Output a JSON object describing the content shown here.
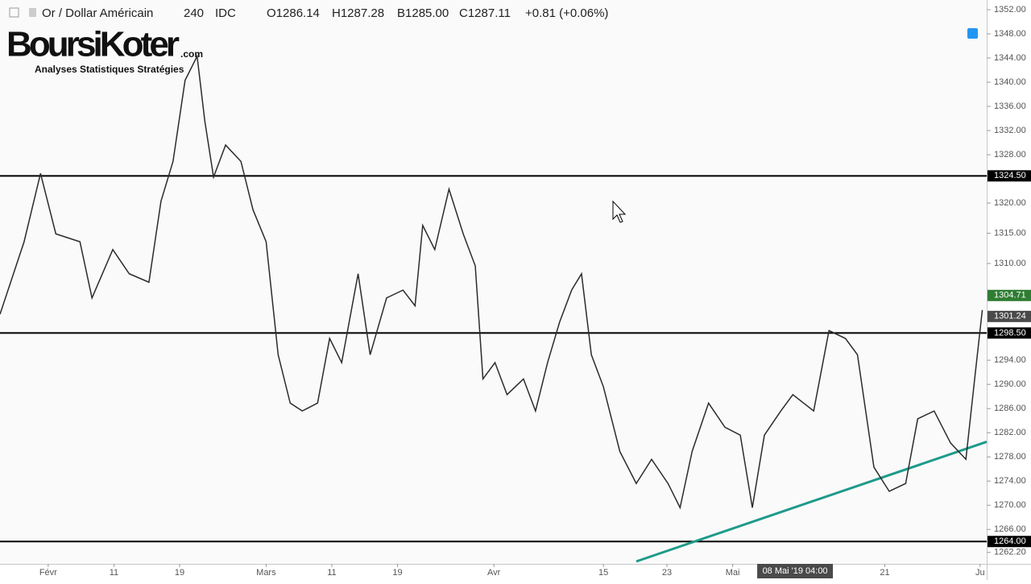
{
  "header": {
    "symbol": "Or / Dollar Américain",
    "interval": "240",
    "source": "IDC",
    "ohlc": [
      "O1286.14",
      "H1287.28",
      "B1285.00",
      "C1287.11",
      "+0.81 (+0.06%)"
    ]
  },
  "logo": {
    "name": "BoursiKoter",
    "suffix": ".com",
    "tagline": "Analyses Statistiques Stratégies"
  },
  "chart_data": {
    "type": "line",
    "x": [
      -4.4,
      -2.2,
      -0.7,
      0.7,
      2.9,
      4.0,
      5.9,
      7.4,
      9.2,
      10.3,
      11.4,
      12.5,
      13.6,
      14.3,
      15.1,
      16.2,
      17.6,
      18.7,
      19.9,
      21.0,
      22.1,
      23.2,
      24.6,
      25.7,
      26.8,
      28.3,
      29.4,
      30.9,
      32.4,
      33.5,
      34.2,
      35.3,
      36.6,
      37.9,
      39.0,
      39.7,
      40.8,
      41.9,
      43.4,
      44.5,
      45.6,
      46.7,
      47.8,
      48.7,
      49.6,
      50.7,
      52.2,
      53.7,
      55.1,
      56.6,
      57.7,
      58.8,
      60.3,
      61.8,
      63.2,
      64.3,
      65.4,
      66.9,
      68.0,
      69.9,
      71.3,
      72.8,
      73.9,
      75.4,
      76.8,
      78.3,
      79.4,
      80.9,
      82.4,
      83.8,
      84.6,
      85.3
    ],
    "series": [
      {
        "name": "Or / Dollar Américain",
        "color": "#2b2b2b",
        "values": [
          1301.6,
          1313.6,
          1324.9,
          1314.9,
          1313.6,
          1304.3,
          1312.3,
          1308.3,
          1306.9,
          1320.3,
          1326.9,
          1340.3,
          1344.3,
          1333.6,
          1324.3,
          1329.6,
          1326.9,
          1318.9,
          1313.6,
          1294.9,
          1286.9,
          1285.6,
          1286.9,
          1297.6,
          1293.6,
          1308.3,
          1294.9,
          1304.3,
          1305.6,
          1303.0,
          1316.3,
          1312.3,
          1322.3,
          1314.9,
          1309.6,
          1290.9,
          1293.6,
          1288.3,
          1290.9,
          1285.6,
          1293.6,
          1300.3,
          1305.6,
          1308.3,
          1294.9,
          1289.6,
          1278.9,
          1273.6,
          1277.6,
          1273.6,
          1269.6,
          1278.9,
          1286.9,
          1282.9,
          1281.6,
          1269.6,
          1281.6,
          1285.6,
          1288.3,
          1285.6,
          1298.9,
          1297.6,
          1294.9,
          1276.3,
          1272.3,
          1273.6,
          1284.3,
          1285.6,
          1280.3,
          1277.6,
          1290.9,
          1302.3
        ]
      }
    ],
    "trendline": {
      "color": "#1e9a8a",
      "x": [
        53.7,
        85.7
      ],
      "values": [
        1260.7,
        1280.5
      ]
    },
    "levels": [
      {
        "value": 1324.5,
        "label": "1324.50"
      },
      {
        "value": 1298.5,
        "label": "1298.50"
      },
      {
        "value": 1264,
        "label": "1264.00"
      }
    ],
    "price_labels": [
      {
        "value": 1304.71,
        "label": "1304.71",
        "color": "#2e7d32"
      },
      {
        "value": 1301.24,
        "label": "1301.24",
        "color": "#4a4a4a"
      }
    ],
    "crosshair": {
      "value": 68.2,
      "label": "08 Mai '19  04:00"
    },
    "xlim": [
      -4.4,
      85.7
    ],
    "ylim": [
      1260.3,
      1353.6
    ],
    "xticks": [
      {
        "value": 0,
        "label": "Févr"
      },
      {
        "value": 6.0,
        "label": "11"
      },
      {
        "value": 12.0,
        "label": "19"
      },
      {
        "value": 19.9,
        "label": "Mars"
      },
      {
        "value": 25.9,
        "label": "11"
      },
      {
        "value": 31.9,
        "label": "19"
      },
      {
        "value": 40.7,
        "label": "Avr"
      },
      {
        "value": 50.7,
        "label": "15"
      },
      {
        "value": 56.5,
        "label": "23"
      },
      {
        "value": 62.5,
        "label": "Mai"
      },
      {
        "value": 76.4,
        "label": "21"
      },
      {
        "value": 85.1,
        "label": "Ju"
      }
    ],
    "yticks": [
      {
        "value": 1352,
        "label": "1352.00"
      },
      {
        "value": 1348,
        "label": "1348.00"
      },
      {
        "value": 1344,
        "label": "1344.00"
      },
      {
        "value": 1340,
        "label": "1340.00"
      },
      {
        "value": 1336,
        "label": "1336.00"
      },
      {
        "value": 1332,
        "label": "1332.00"
      },
      {
        "value": 1328,
        "label": "1328.00"
      },
      {
        "value": 1320,
        "label": "1320.00"
      },
      {
        "value": 1315,
        "label": "1315.00"
      },
      {
        "value": 1310,
        "label": "1310.00"
      },
      {
        "value": 1294,
        "label": "1294.00"
      },
      {
        "value": 1290,
        "label": "1290.00"
      },
      {
        "value": 1286,
        "label": "1286.00"
      },
      {
        "value": 1282,
        "label": "1282.00"
      },
      {
        "value": 1278,
        "label": "1278.00"
      },
      {
        "value": 1274,
        "label": "1274.00"
      },
      {
        "value": 1270,
        "label": "1270.00"
      },
      {
        "value": 1266,
        "label": "1266.00"
      },
      {
        "value": 1262.2,
        "label": "1262.20"
      }
    ]
  }
}
